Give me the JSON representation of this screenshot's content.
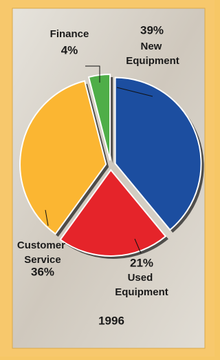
{
  "chart_data": {
    "type": "pie",
    "title": "1996",
    "categories": [
      "New Equipment",
      "Used Equipment",
      "Customer Service",
      "Finance"
    ],
    "values": [
      39,
      21,
      36,
      4
    ],
    "value_labels": [
      "39%",
      "21%",
      "36%",
      "4%"
    ],
    "colors": [
      "#1c4ea0",
      "#e5242a",
      "#fbb632",
      "#4fae48"
    ]
  }
}
